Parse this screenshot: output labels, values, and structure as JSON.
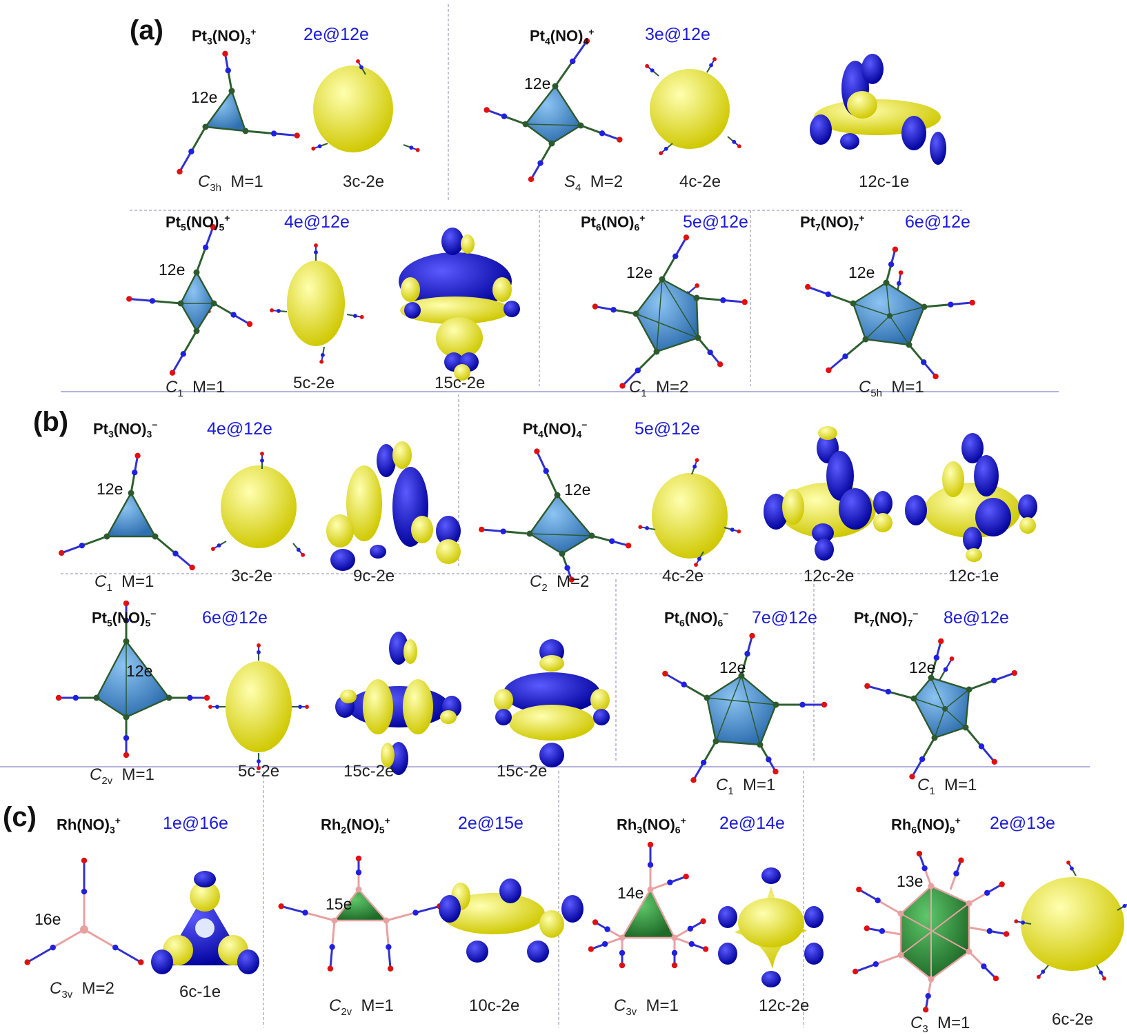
{
  "panel_labels": [
    "(a)",
    "(b)",
    "(c)"
  ],
  "colors": {
    "blue_lobe": "#0b0bd8",
    "yellow_lobe": "#e8e600",
    "pt_cage": "#4d93d6",
    "rh_face": "#2e8b3a",
    "rh_bond": "#e8a1a1",
    "n_atom": "#2020e0",
    "o_atom": "#e01010",
    "count_text": "#1a1adb",
    "divider": "#8a8aa8"
  },
  "icons": [
    "cluster-ball-stick",
    "elf-isosurface"
  ],
  "clusters": [
    {
      "id": "pt3p",
      "formula": {
        "base": "Pt",
        "n": "3",
        "lig": "(NO)",
        "m": "3",
        "charge": "+"
      },
      "count": "2e@12e",
      "geometry": {
        "elabel": "12e",
        "point_group": "C",
        "pg_sub": "3h",
        "mult": "M=1"
      },
      "orbitals": [
        "3c-2e"
      ]
    },
    {
      "id": "pt4p",
      "formula": {
        "base": "Pt",
        "n": "4",
        "lig": "(NO)",
        "m": "4",
        "charge": "+"
      },
      "count": "3e@12e",
      "geometry": {
        "elabel": "12e",
        "point_group": "S",
        "pg_sub": "4",
        "mult": "M=2"
      },
      "orbitals": [
        "4c-2e",
        "12c-1e"
      ]
    },
    {
      "id": "pt5p",
      "formula": {
        "base": "Pt",
        "n": "5",
        "lig": "(NO)",
        "m": "5",
        "charge": "+"
      },
      "count": "4e@12e",
      "geometry": {
        "elabel": "12e",
        "point_group": "C",
        "pg_sub": "1",
        "mult": "M=1"
      },
      "orbitals": [
        "5c-2e",
        "15c-2e"
      ]
    },
    {
      "id": "pt6p",
      "formula": {
        "base": "Pt",
        "n": "6",
        "lig": "(NO)",
        "m": "6",
        "charge": "+"
      },
      "count": "5e@12e",
      "geometry": {
        "elabel": "12e",
        "point_group": "C",
        "pg_sub": "1",
        "mult": "M=2"
      },
      "orbitals": []
    },
    {
      "id": "pt7p",
      "formula": {
        "base": "Pt",
        "n": "7",
        "lig": "(NO)",
        "m": "7",
        "charge": "+"
      },
      "count": "6e@12e",
      "geometry": {
        "elabel": "12e",
        "point_group": "C",
        "pg_sub": "5h",
        "mult": "M=1"
      },
      "orbitals": []
    },
    {
      "id": "pt3m",
      "formula": {
        "base": "Pt",
        "n": "3",
        "lig": "(NO)",
        "m": "3",
        "charge": "−"
      },
      "count": "4e@12e",
      "geometry": {
        "elabel": "12e",
        "point_group": "C",
        "pg_sub": "1",
        "mult": "M=1"
      },
      "orbitals": [
        "3c-2e",
        "9c-2e"
      ]
    },
    {
      "id": "pt4m",
      "formula": {
        "base": "Pt",
        "n": "4",
        "lig": "(NO)",
        "m": "4",
        "charge": "−"
      },
      "count": "5e@12e",
      "geometry": {
        "elabel": "12e",
        "point_group": "C",
        "pg_sub": "2",
        "mult": "M=2"
      },
      "orbitals": [
        "4c-2e",
        "12c-2e",
        "12c-1e"
      ]
    },
    {
      "id": "pt5m",
      "formula": {
        "base": "Pt",
        "n": "5",
        "lig": "(NO)",
        "m": "5",
        "charge": "−"
      },
      "count": "6e@12e",
      "geometry": {
        "elabel": "12e",
        "point_group": "C",
        "pg_sub": "2v",
        "mult": "M=1"
      },
      "orbitals": [
        "5c-2e",
        "15c-2e",
        "15c-2e"
      ]
    },
    {
      "id": "pt6m",
      "formula": {
        "base": "Pt",
        "n": "6",
        "lig": "(NO)",
        "m": "6",
        "charge": "−"
      },
      "count": "7e@12e",
      "geometry": {
        "elabel": "12e",
        "point_group": "C",
        "pg_sub": "1",
        "mult": "M=1"
      },
      "orbitals": []
    },
    {
      "id": "pt7m",
      "formula": {
        "base": "Pt",
        "n": "7",
        "lig": "(NO)",
        "m": "7",
        "charge": "−"
      },
      "count": "8e@12e",
      "geometry": {
        "elabel": "12e",
        "point_group": "C",
        "pg_sub": "1",
        "mult": "M=1"
      },
      "orbitals": []
    },
    {
      "id": "rh1",
      "formula": {
        "base": "Rh",
        "n": "",
        "lig": "(NO)",
        "m": "3",
        "charge": "+"
      },
      "count": "1e@16e",
      "geometry": {
        "elabel": "16e",
        "point_group": "C",
        "pg_sub": "3v",
        "mult": "M=2"
      },
      "orbitals": [
        "6c-1e"
      ]
    },
    {
      "id": "rh2",
      "formula": {
        "base": "Rh",
        "n": "2",
        "lig": "(NO)",
        "m": "5",
        "charge": "+"
      },
      "count": "2e@15e",
      "geometry": {
        "elabel": "15e",
        "point_group": "C",
        "pg_sub": "2v",
        "mult": "M=1"
      },
      "orbitals": [
        "10c-2e"
      ]
    },
    {
      "id": "rh3",
      "formula": {
        "base": "Rh",
        "n": "3",
        "lig": "(NO)",
        "m": "6",
        "charge": "+"
      },
      "count": "2e@14e",
      "geometry": {
        "elabel": "14e",
        "point_group": "C",
        "pg_sub": "3v",
        "mult": "M=1"
      },
      "orbitals": [
        "12c-2e"
      ]
    },
    {
      "id": "rh6",
      "formula": {
        "base": "Rh",
        "n": "6",
        "lig": "(NO)",
        "m": "9",
        "charge": "+"
      },
      "count": "2e@13e",
      "geometry": {
        "elabel": "13e",
        "point_group": "C",
        "pg_sub": "3",
        "mult": "M=1"
      },
      "orbitals": [
        "6c-2e"
      ]
    }
  ]
}
